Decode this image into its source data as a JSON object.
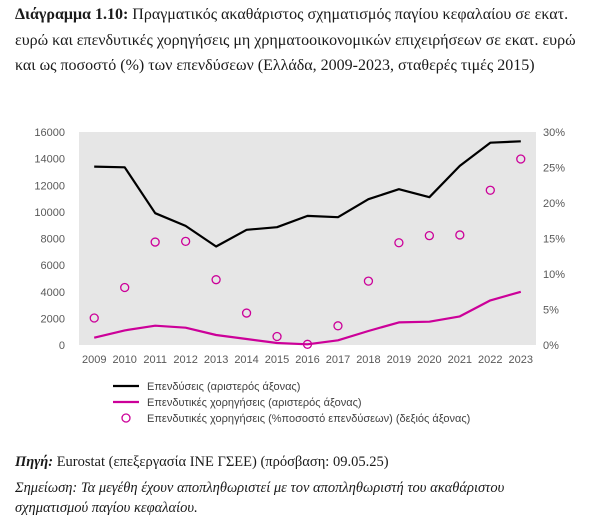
{
  "figure": {
    "label": "Διάγραμμα 1.10:",
    "caption": "Πραγματικός ακαθάριστος σχηματισμός παγίου κεφαλαίου σε εκατ. ευρώ και επενδυτικές χορηγήσεις μη χρηματοοικονομικών επιχειρήσεων σε εκατ. ευρώ και ως ποσοστό (%) των επενδύσεων (Ελλάδα, 2009-2023, σταθερές τιμές 2015)"
  },
  "source": {
    "label": "Πηγή:",
    "text": "Eurostat (επεξεργασία ΙΝΕ ΓΣΕΕ) (πρόσβαση: 09.05.25)"
  },
  "note": {
    "text": "Σημείωση: Τα μεγέθη έχουν αποπληθωριστεί με τον αποπληθωριστή του ακαθάριστου σχηματισμού παγίου κεφαλαίου."
  },
  "chart_data": {
    "type": "line",
    "x": [
      "2009",
      "2010",
      "2011",
      "2012",
      "2013",
      "2014",
      "2015",
      "2016",
      "2017",
      "2018",
      "2019",
      "2020",
      "2021",
      "2022",
      "2023"
    ],
    "y_left": {
      "lim": [
        0,
        16000
      ],
      "ticks": [
        "0",
        "2000",
        "4000",
        "6000",
        "8000",
        "10000",
        "12000",
        "14000",
        "16000"
      ]
    },
    "y_right": {
      "lim": [
        0,
        30
      ],
      "ticks": [
        "0%",
        "5%",
        "10%",
        "15%",
        "20%",
        "25%",
        "30%"
      ]
    },
    "grid": false,
    "legend_position": "bottom",
    "series": [
      {
        "name": "Επενδύσεις (αριστερός άξονας)",
        "kind": "line",
        "axis": "left",
        "color": "#000000",
        "values": [
          13400,
          13350,
          9900,
          8950,
          7400,
          8650,
          8850,
          9700,
          9600,
          10950,
          11700,
          11100,
          13450,
          15200,
          15300
        ]
      },
      {
        "name": "Επενδυτικές χορηγήσεις (αριστερός άξονας)",
        "kind": "line",
        "axis": "left",
        "color": "#cc0099",
        "values": [
          550,
          1100,
          1450,
          1300,
          750,
          450,
          150,
          50,
          350,
          1050,
          1700,
          1750,
          2150,
          3350,
          4000
        ]
      },
      {
        "name": "Επενδυτικές χορηγήσεις (%ποσοστό επενδύσεων) (δεξιός άξονας)",
        "kind": "scatter",
        "axis": "right",
        "color": "#cc0099",
        "values": [
          3.8,
          8.1,
          14.5,
          14.6,
          9.2,
          4.5,
          1.2,
          0.1,
          2.7,
          9.0,
          14.4,
          15.4,
          15.5,
          21.8,
          26.2
        ]
      }
    ]
  }
}
